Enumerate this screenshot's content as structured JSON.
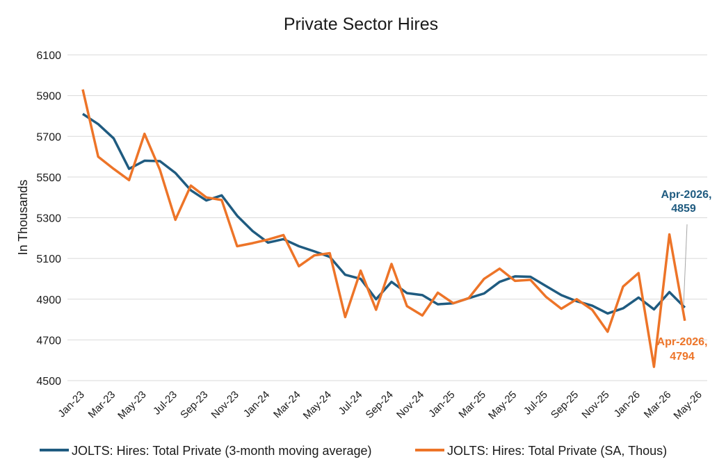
{
  "chart_data": {
    "type": "line",
    "title": "Private Sector Hires",
    "xlabel": "",
    "ylabel": "In Thousands",
    "ylim": [
      4500,
      6100
    ],
    "yticks": [
      "4500",
      "4700",
      "4900",
      "5100",
      "5300",
      "5500",
      "5700",
      "5900",
      "6100"
    ],
    "grid": true,
    "legend_position": "bottom",
    "x": [
      "Jan-23",
      "Feb-23",
      "Mar-23",
      "Apr-23",
      "May-23",
      "Jun-23",
      "Jul-23",
      "Aug-23",
      "Sep-23",
      "Oct-23",
      "Nov-23",
      "Dec-23",
      "Jan-24",
      "Feb-24",
      "Mar-24",
      "Apr-24",
      "May-24",
      "Jun-24",
      "Jul-24",
      "Aug-24",
      "Sep-24",
      "Oct-24",
      "Nov-24",
      "Dec-24",
      "Jan-25",
      "Feb-25",
      "Mar-25",
      "Apr-25",
      "May-25",
      "Jun-25",
      "Jul-25",
      "Aug-25",
      "Sep-25",
      "Oct-25",
      "Nov-25",
      "Dec-25",
      "Jan-26",
      "Feb-26",
      "Mar-26",
      "Apr-26"
    ],
    "xticks": [
      "Jan-23",
      "Mar-23",
      "May-23",
      "Jul-23",
      "Sep-23",
      "Nov-23",
      "Jan-24",
      "Mar-24",
      "May-24",
      "Jul-24",
      "Sep-24",
      "Nov-24",
      "Jan-25",
      "Mar-25",
      "May-25",
      "Jul-25",
      "Sep-25",
      "Nov-25",
      "Jan-26",
      "Mar-26",
      "May-26"
    ],
    "series": [
      {
        "name": "JOLTS: Hires: Total Private (3-month moving average)",
        "color": "#1f5b80",
        "values": [
          5810,
          5760,
          5690,
          5540,
          5580,
          5578,
          5520,
          5435,
          5385,
          5410,
          5310,
          5235,
          5178,
          5195,
          5160,
          5135,
          5108,
          5020,
          5000,
          4900,
          4985,
          4930,
          4920,
          4875,
          4880,
          4905,
          4928,
          4985,
          5012,
          5010,
          4965,
          4920,
          4890,
          4868,
          4830,
          4855,
          4908,
          4850,
          4935,
          4859
        ]
      },
      {
        "name": "JOLTS: Hires: Total Private (SA, Thous)",
        "color": "#ed7428",
        "values": [
          5930,
          5600,
          5540,
          5485,
          5712,
          5535,
          5290,
          5458,
          5400,
          5387,
          5160,
          5175,
          5193,
          5215,
          5062,
          5115,
          5126,
          4812,
          5040,
          4848,
          5073,
          4866,
          4820,
          4932,
          4880,
          4905,
          5000,
          5050,
          4990,
          4995,
          4912,
          4853,
          4900,
          4848,
          4740,
          4962,
          5028,
          4568,
          5218,
          4794
        ]
      }
    ],
    "annotations": [
      {
        "line1": "Apr-2026,",
        "line2": "4859",
        "color": "#1f5b80"
      },
      {
        "line1": "Apr-2026,",
        "line2": "4794",
        "color": "#ed7428"
      }
    ]
  }
}
